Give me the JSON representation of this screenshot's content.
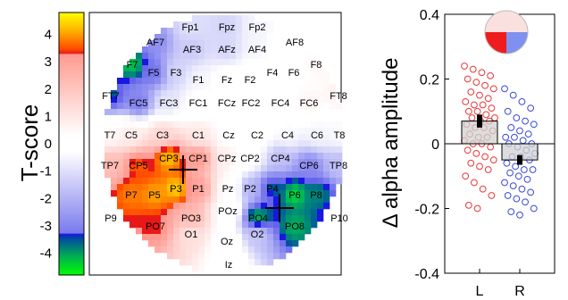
{
  "chart_data": [
    {
      "type": "heatmap",
      "colorbar": {
        "label": "T-score",
        "ticks": [
          "4",
          "3",
          "2",
          "1",
          "0",
          "-1",
          "-2",
          "-3",
          "-4"
        ],
        "range": [
          -4.8,
          4.8
        ]
      },
      "electrodes": [
        {
          "label": "Fp1",
          "t": -1.0
        },
        {
          "label": "Fpz",
          "t": -1.2
        },
        {
          "label": "Fp2",
          "t": -0.6
        },
        {
          "label": "AF7",
          "t": -2.5
        },
        {
          "label": "AF3",
          "t": -1.4
        },
        {
          "label": "AFz",
          "t": -1.2
        },
        {
          "label": "AF4",
          "t": -0.6
        },
        {
          "label": "AF8",
          "t": 0.3
        },
        {
          "label": "F7",
          "t": -4.6
        },
        {
          "label": "F5",
          "t": -3.0
        },
        {
          "label": "F3",
          "t": -1.2
        },
        {
          "label": "F1",
          "t": -0.6
        },
        {
          "label": "Fz",
          "t": -0.2
        },
        {
          "label": "F2",
          "t": -0.2
        },
        {
          "label": "F4",
          "t": 0.3
        },
        {
          "label": "F6",
          "t": 0.4
        },
        {
          "label": "F8",
          "t": 0.6
        },
        {
          "label": "FT7",
          "t": -3.6
        },
        {
          "label": "FC5",
          "t": -2.8
        },
        {
          "label": "FC3",
          "t": -0.9
        },
        {
          "label": "FC1",
          "t": -0.3
        },
        {
          "label": "FCz",
          "t": 0.1
        },
        {
          "label": "FC2",
          "t": 0.2
        },
        {
          "label": "FC4",
          "t": 0.5
        },
        {
          "label": "FC6",
          "t": 0.7
        },
        {
          "label": "FT8",
          "t": 0.8
        },
        {
          "label": "T7",
          "t": 0.6
        },
        {
          "label": "C5",
          "t": 0.9
        },
        {
          "label": "C3",
          "t": 1.5
        },
        {
          "label": "C1",
          "t": 1.0
        },
        {
          "label": "Cz",
          "t": 0.3
        },
        {
          "label": "C2",
          "t": -0.1
        },
        {
          "label": "C4",
          "t": -0.5
        },
        {
          "label": "C6",
          "t": -0.6
        },
        {
          "label": "T8",
          "t": -0.5
        },
        {
          "label": "TP7",
          "t": 2.2
        },
        {
          "label": "CP5",
          "t": 3.6
        },
        {
          "label": "CP3",
          "t": 4.5
        },
        {
          "label": "CP1",
          "t": 3.2
        },
        {
          "label": "CPz",
          "t": 0.9
        },
        {
          "label": "CP2",
          "t": -0.3
        },
        {
          "label": "CP4",
          "t": -1.6
        },
        {
          "label": "CP6",
          "t": -2.6
        },
        {
          "label": "TP8",
          "t": -1.6
        },
        {
          "label": "P7",
          "t": 3.9
        },
        {
          "label": "P5",
          "t": 4.2
        },
        {
          "label": "P3",
          "t": 4.6
        },
        {
          "label": "P1",
          "t": 3.0
        },
        {
          "label": "Pz",
          "t": 0.5
        },
        {
          "label": "P2",
          "t": -1.8
        },
        {
          "label": "P4",
          "t": -3.6
        },
        {
          "label": "P6",
          "t": -4.8
        },
        {
          "label": "P8",
          "t": -4.0
        },
        {
          "label": "P9",
          "t": 3.5
        },
        {
          "label": "P10",
          "t": -3.0
        },
        {
          "label": "PO7",
          "t": 3.4
        },
        {
          "label": "PO3",
          "t": 2.4
        },
        {
          "label": "POz",
          "t": 0.3
        },
        {
          "label": "PO4",
          "t": -4.5
        },
        {
          "label": "PO8",
          "t": -4.4
        },
        {
          "label": "O1",
          "t": 1.2
        },
        {
          "label": "Oz",
          "t": 0.2
        },
        {
          "label": "O2",
          "t": -1.4
        },
        {
          "label": "Iz",
          "t": 0.1
        }
      ],
      "peak_markers": [
        "CP3-P3",
        "P6-PO8"
      ]
    },
    {
      "type": "bar",
      "categories": [
        "L",
        "R"
      ],
      "values": [
        0.07,
        -0.05
      ],
      "errors": [
        0.02,
        0.015
      ],
      "ylabel": "Δ alpha amplitude",
      "ylim": [
        -0.4,
        0.4
      ],
      "yticks": [
        "0.4",
        "0.2",
        "0",
        "-0.2",
        "-0.4"
      ],
      "colors": {
        "L": "#e8383a",
        "R": "#3a4ad8"
      },
      "points": {
        "L": [
          0.24,
          0.23,
          0.22,
          0.21,
          0.2,
          0.19,
          0.18,
          0.17,
          0.16,
          0.15,
          0.14,
          0.13,
          0.12,
          0.12,
          0.11,
          0.1,
          0.1,
          0.09,
          0.08,
          0.08,
          0.07,
          0.07,
          0.06,
          0.05,
          0.05,
          0.04,
          0.03,
          0.02,
          0.02,
          0.01,
          0.0,
          0.0,
          -0.01,
          -0.02,
          -0.03,
          -0.04,
          -0.05,
          -0.06,
          -0.07,
          -0.08,
          -0.1,
          -0.12,
          -0.14,
          -0.16,
          -0.19,
          -0.2
        ],
        "R": [
          0.17,
          0.15,
          0.13,
          0.11,
          0.1,
          0.08,
          0.07,
          0.06,
          0.05,
          0.04,
          0.03,
          0.02,
          0.02,
          0.01,
          0.0,
          0.0,
          -0.01,
          -0.02,
          -0.03,
          -0.04,
          -0.04,
          -0.05,
          -0.06,
          -0.07,
          -0.08,
          -0.08,
          -0.09,
          -0.1,
          -0.11,
          -0.12,
          -0.13,
          -0.14,
          -0.15,
          -0.16,
          -0.17,
          -0.18,
          -0.2,
          -0.21,
          -0.22
        ]
      }
    }
  ]
}
